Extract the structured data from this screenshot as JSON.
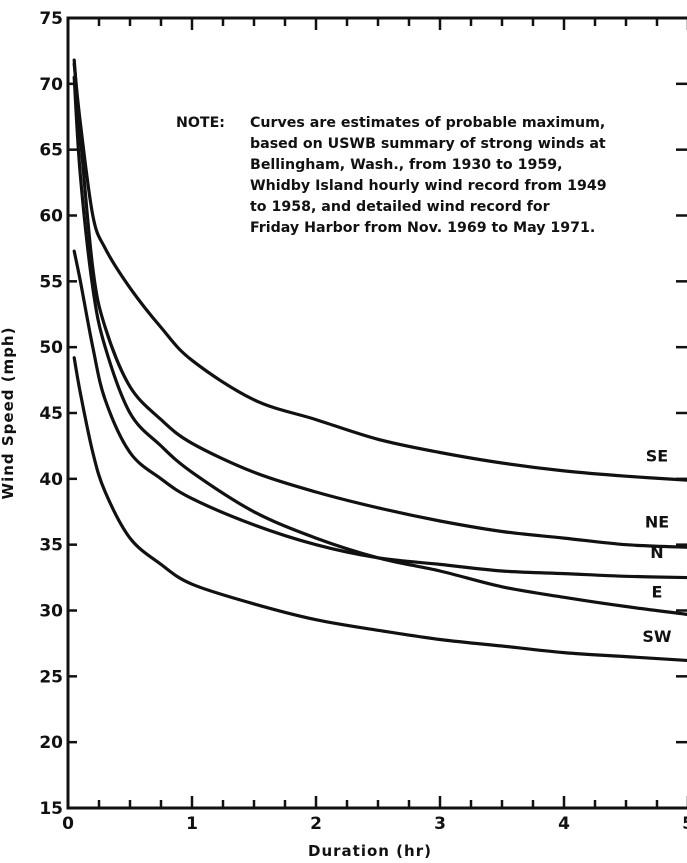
{
  "chart_data": {
    "type": "line",
    "xlabel": "Duration (hr)",
    "ylabel": "Wind Speed (mph)",
    "xlim": [
      0,
      5
    ],
    "ylim": [
      15,
      75
    ],
    "x_ticks": [
      0,
      1,
      2,
      3,
      4,
      5
    ],
    "y_ticks": [
      15,
      20,
      25,
      30,
      35,
      40,
      45,
      50,
      55,
      60,
      65,
      70,
      75
    ],
    "grid": false,
    "legend": "labels at right end of curves",
    "note": [
      "NOTE:",
      "Curves are estimates of probable maximum,",
      "based on USWB summary of strong winds at",
      "Bellingham, Wash., from 1930 to 1959,",
      "Whidby Island hourly wind record from 1949",
      "to 1958, and detailed wind record for",
      "Friday Harbor from Nov. 1969 to May 1971."
    ],
    "series": [
      {
        "name": "SE",
        "x": [
          0.05,
          0.1,
          0.2,
          0.3,
          0.5,
          0.75,
          1.0,
          1.5,
          2.0,
          2.5,
          3.0,
          3.5,
          4.0,
          4.5,
          5.0
        ],
        "y": [
          71.5,
          67.0,
          60.0,
          57.5,
          54.5,
          51.5,
          49.0,
          46.0,
          44.5,
          43.0,
          42.0,
          41.2,
          40.6,
          40.2,
          39.9
        ]
      },
      {
        "name": "NE",
        "x": [
          0.05,
          0.1,
          0.2,
          0.3,
          0.5,
          0.75,
          1.0,
          1.5,
          2.0,
          2.5,
          3.0,
          3.5,
          4.0,
          4.5,
          5.0
        ],
        "y": [
          71.8,
          66.0,
          56.0,
          51.5,
          47.0,
          44.5,
          42.7,
          40.5,
          39.0,
          37.8,
          36.8,
          36.0,
          35.5,
          35.0,
          34.8
        ]
      },
      {
        "name": "N",
        "x": [
          0.05,
          0.1,
          0.2,
          0.3,
          0.5,
          0.75,
          1.0,
          1.5,
          2.0,
          2.5,
          3.0,
          3.5,
          4.0,
          4.5,
          5.0
        ],
        "y": [
          57.3,
          55.0,
          50.0,
          46.0,
          42.0,
          40.0,
          38.5,
          36.5,
          35.0,
          34.0,
          33.5,
          33.0,
          32.8,
          32.6,
          32.5
        ]
      },
      {
        "name": "E",
        "x": [
          0.05,
          0.1,
          0.2,
          0.3,
          0.5,
          0.75,
          1.0,
          1.5,
          2.0,
          2.5,
          3.0,
          3.5,
          4.0,
          4.5,
          5.0
        ],
        "y": [
          70.5,
          63.0,
          54.5,
          50.0,
          45.0,
          42.5,
          40.5,
          37.5,
          35.5,
          34.0,
          33.0,
          31.8,
          31.0,
          30.3,
          29.7
        ]
      },
      {
        "name": "SW",
        "x": [
          0.05,
          0.1,
          0.2,
          0.3,
          0.5,
          0.75,
          1.0,
          1.5,
          2.0,
          2.5,
          3.0,
          3.5,
          4.0,
          4.5,
          5.0
        ],
        "y": [
          49.2,
          46.5,
          42.0,
          39.0,
          35.5,
          33.5,
          32.0,
          30.5,
          29.3,
          28.5,
          27.8,
          27.3,
          26.8,
          26.5,
          26.2
        ]
      }
    ],
    "label_positions": {
      "SE": [
        4.75,
        41.3
      ],
      "NE": [
        4.75,
        36.3
      ],
      "N": [
        4.75,
        34.0
      ],
      "E": [
        4.75,
        31.0
      ],
      "SW": [
        4.75,
        27.6
      ]
    }
  }
}
